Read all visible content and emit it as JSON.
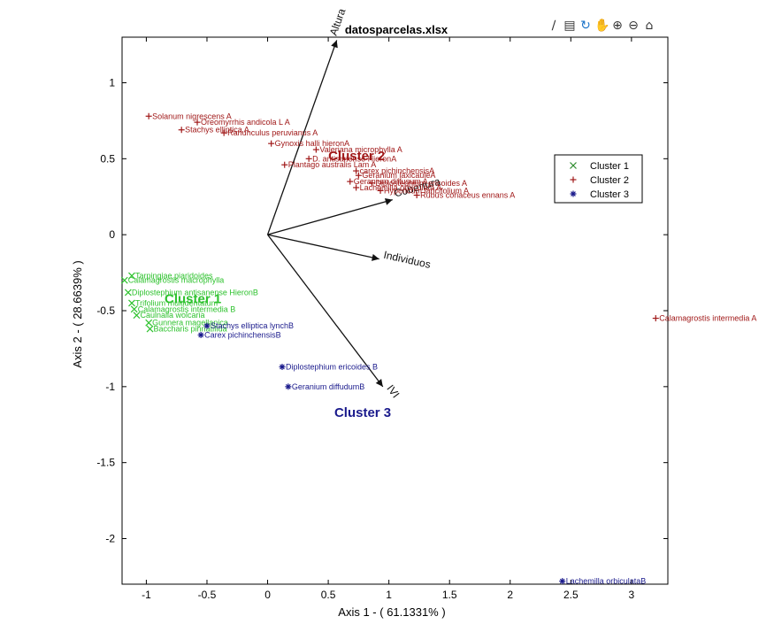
{
  "toolbar": {
    "icons": [
      "brush-icon",
      "legend-icon",
      "rotate-icon",
      "pan-icon",
      "zoom-in-icon",
      "zoom-out-icon",
      "home-icon"
    ],
    "glyphs": [
      "∕",
      "▤",
      "↻",
      "✋",
      "⊕",
      "⊖",
      "⌂"
    ]
  },
  "chart_data": {
    "type": "scatter",
    "title": "datosparcelas.xlsx",
    "xlabel": "Axis 1 - ( 61.1331% )",
    "ylabel": "Axis 2 - ( 28.6639% )",
    "xlim": [
      -1.2,
      3.3
    ],
    "ylim": [
      -2.3,
      1.3
    ],
    "xticks": [
      -1,
      -0.5,
      0,
      0.5,
      1,
      1.5,
      2,
      2.5,
      3
    ],
    "yticks": [
      -2,
      -1.5,
      -1,
      -0.5,
      0,
      0.5,
      1
    ],
    "xticklabels": [
      "-1",
      "-0.5",
      "0",
      "0.5",
      "1",
      "1.5",
      "2",
      "2.5",
      "3"
    ],
    "yticklabels": [
      "-2",
      "-1.5",
      "-1",
      "-0.5",
      "0",
      "0.5",
      "1"
    ],
    "grid": false,
    "legend": {
      "placement": "right",
      "entries": [
        {
          "label": "Cluster 1",
          "marker": "x",
          "color": "#2e8b2e"
        },
        {
          "label": "Cluster 2",
          "marker": "+",
          "color": "#a01818"
        },
        {
          "label": "Cluster 3",
          "marker": "*",
          "color": "#1a1a8c"
        }
      ]
    },
    "cluster_labels": [
      {
        "label": "Cluster 1",
        "x": -0.85,
        "y": -0.45,
        "color": "#2ec22e"
      },
      {
        "label": "Cluster 2",
        "x": 0.5,
        "y": 0.49,
        "color": "#a01818"
      },
      {
        "label": "Cluster 3",
        "x": 0.55,
        "y": -1.2,
        "color": "#1a1a8c"
      }
    ],
    "vectors": [
      {
        "label": "Altura",
        "x": 0.57,
        "y": 1.28
      },
      {
        "label": "Cobertura",
        "x": 1.03,
        "y": 0.23
      },
      {
        "label": "Individuos",
        "x": 0.92,
        "y": -0.16
      },
      {
        "label": "IVI",
        "x": 0.95,
        "y": -1.0
      }
    ],
    "series": [
      {
        "name": "Cluster 1",
        "color": "#2ec22e",
        "points": [
          {
            "label": "Tarpingiae piaridoides",
            "x": -1.12,
            "y": -0.27
          },
          {
            "label": "Calamagrostis macrophylla",
            "x": -1.18,
            "y": -0.3
          },
          {
            "label": "Diplostephium antisanense HieronB",
            "x": -1.15,
            "y": -0.38
          },
          {
            "label": "Trifolium multidentatum",
            "x": -1.12,
            "y": -0.45
          },
          {
            "label": "Calamagrostis intermedia B",
            "x": -1.1,
            "y": -0.49
          },
          {
            "label": "Caulnalia wolcaria",
            "x": -1.08,
            "y": -0.53
          },
          {
            "label": "Gunnera magellanica",
            "x": -0.98,
            "y": -0.58
          },
          {
            "label": "Baccharis pinnatifida",
            "x": -0.97,
            "y": -0.62
          }
        ]
      },
      {
        "name": "Cluster 2",
        "color": "#a01818",
        "points": [
          {
            "label": "Solanum nigrescens A",
            "x": -0.98,
            "y": 0.78
          },
          {
            "label": "Oreomyrrhis andicola L A",
            "x": -0.58,
            "y": 0.74
          },
          {
            "label": "Stachys elliptica A",
            "x": -0.71,
            "y": 0.69
          },
          {
            "label": "Ranunculus peruvianus A",
            "x": -0.36,
            "y": 0.67
          },
          {
            "label": "Gynoxis halli hieronA",
            "x": 0.03,
            "y": 0.6
          },
          {
            "label": "Valeriana microphylla A",
            "x": 0.4,
            "y": 0.56
          },
          {
            "label": "D. antisanense HieronA",
            "x": 0.34,
            "y": 0.5
          },
          {
            "label": "Plantago australis Lam A",
            "x": 0.14,
            "y": 0.46
          },
          {
            "label": "carex pichinchensisA",
            "x": 0.73,
            "y": 0.42
          },
          {
            "label": "Geranium laxicauleA",
            "x": 0.75,
            "y": 0.39
          },
          {
            "label": "Geranium diffusum A",
            "x": 0.68,
            "y": 0.35
          },
          {
            "label": "Diplostephium ericoides A",
            "x": 0.86,
            "y": 0.34
          },
          {
            "label": "Lachemilla orbiculata A",
            "x": 0.73,
            "y": 0.31
          },
          {
            "label": "Hypericum laricifolium A",
            "x": 0.93,
            "y": 0.29
          },
          {
            "label": "Rubus coriaceus ennans A",
            "x": 1.23,
            "y": 0.26
          },
          {
            "label": "Calamagrostis intermedia A",
            "x": 3.2,
            "y": -0.55
          }
        ]
      },
      {
        "name": "Cluster 3",
        "color": "#1a1a8c",
        "points": [
          {
            "label": "Stachys elliptica lynchB",
            "x": -0.5,
            "y": -0.6
          },
          {
            "label": "Carex pichinchensisB",
            "x": -0.55,
            "y": -0.66
          },
          {
            "label": "Diplostephium ericoides B",
            "x": 0.12,
            "y": -0.87
          },
          {
            "label": "Geranium diffudumB",
            "x": 0.17,
            "y": -1.0
          },
          {
            "label": "Lachemilla orbiculataB",
            "x": 2.43,
            "y": -2.28
          }
        ]
      }
    ]
  }
}
